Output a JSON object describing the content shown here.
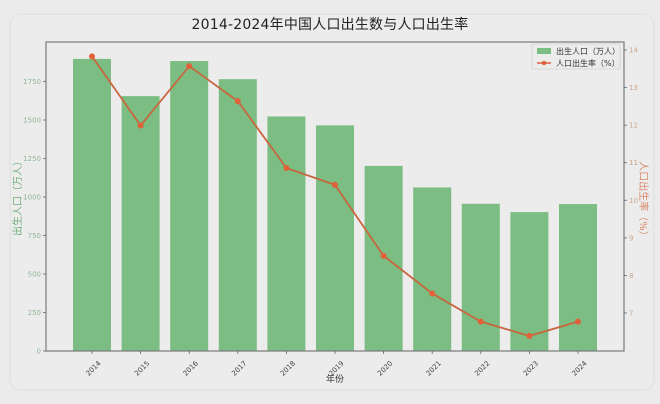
{
  "chart_data": {
    "type": "bar+line",
    "title": "2014-2024年中国人口出生数与人口出生率",
    "xlabel": "年份",
    "ylabel": "出生人口（万人）",
    "ylabel_right": "人口出生率（%）",
    "categories": [
      "2014",
      "2015",
      "2016",
      "2017",
      "2018",
      "2019",
      "2020",
      "2021",
      "2022",
      "2023",
      "2024"
    ],
    "series": [
      {
        "name": "出生人口（万人）",
        "type": "bar",
        "axis": "left",
        "color": "#7bbd82",
        "values": [
          1897,
          1655,
          1883,
          1765,
          1523,
          1465,
          1202,
          1062,
          956,
          902,
          954
        ]
      },
      {
        "name": "人口出生率（%）",
        "type": "line",
        "axis": "right",
        "color": "#e0613a",
        "values": [
          13.83,
          11.99,
          13.57,
          12.64,
          10.86,
          10.41,
          8.52,
          7.52,
          6.77,
          6.39,
          6.77
        ]
      }
    ],
    "ylim": [
      0,
      1930
    ],
    "ylim_right": [
      6.1,
      14.2
    ],
    "yticks": [
      0,
      250,
      500,
      750,
      1000,
      1250,
      1500,
      1750
    ],
    "yticks_right": [
      7,
      8,
      9,
      10,
      11,
      12,
      13,
      14
    ],
    "grid": false,
    "legend_position": "upper right"
  },
  "colors": {
    "bar": "#7bbd82",
    "line": "#e0613a",
    "left_axis_label": "#6fae77",
    "right_axis_label": "#d8876a"
  }
}
